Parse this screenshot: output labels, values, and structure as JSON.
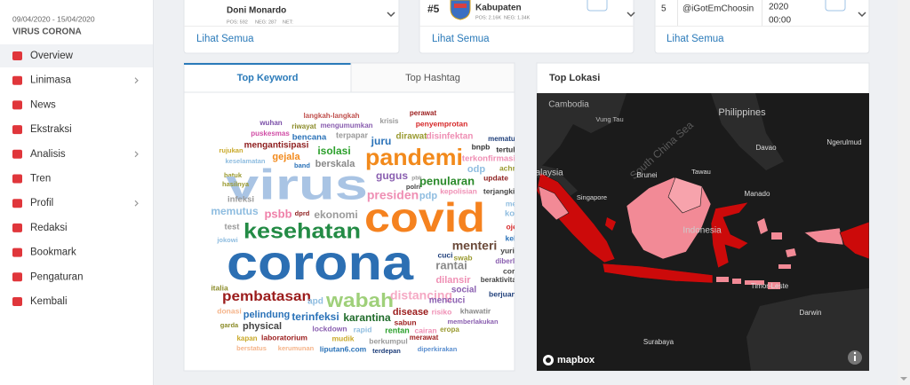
{
  "sidebar": {
    "date_range": "09/04/2020 - 15/04/2020",
    "project": "VIRUS CORONA",
    "active_item": 0,
    "menu": [
      {
        "label": "Overview",
        "has_submenu": false
      },
      {
        "label": "Linimasa",
        "has_submenu": true
      },
      {
        "label": "News",
        "has_submenu": false
      },
      {
        "label": "Ekstraksi",
        "has_submenu": false
      },
      {
        "label": "Analisis",
        "has_submenu": true
      },
      {
        "label": "Tren",
        "has_submenu": false
      },
      {
        "label": "Profil",
        "has_submenu": true
      },
      {
        "label": "Redaksi",
        "has_submenu": false
      },
      {
        "label": "Bookmark",
        "has_submenu": false
      },
      {
        "label": "Pengaturan",
        "has_submenu": false
      },
      {
        "label": "Kembali",
        "has_submenu": false
      }
    ]
  },
  "cards": [
    {
      "name": "Doni Monardo",
      "pos": "POS: 592",
      "neg": "NEG: 287",
      "net": "NET:",
      "link": "Lihat Semua"
    },
    {
      "rank": "#5",
      "name": "Kabupaten",
      "pos": "POS: 2.16K",
      "neg": "NEG: 1.34K",
      "link": "Lihat Semua"
    },
    {
      "rank": "5",
      "name": "@iGotEmChoosin",
      "date": "2020",
      "time": "00:00",
      "link": "Lihat Semua"
    }
  ],
  "keywords_panel": {
    "tabs": [
      "Top Keyword",
      "Top Hashtag"
    ],
    "active_tab": 0,
    "words": [
      {
        "text": "wuhan",
        "color": "#7b4fa8"
      },
      {
        "text": "langkah-langkah",
        "color": "#c0504d"
      },
      {
        "text": "krisis",
        "color": "#999999"
      },
      {
        "text": "perawat",
        "color": "#9b1c1c"
      },
      {
        "text": "riwayat",
        "color": "#8c8c2a"
      },
      {
        "text": "mengumumkan",
        "color": "#8a5fb0"
      },
      {
        "text": "penyemprotan",
        "color": "#d62728"
      },
      {
        "text": "puskesmas",
        "color": "#d14fa6"
      },
      {
        "text": "bencana",
        "color": "#2a72b8"
      },
      {
        "text": "terpapar",
        "color": "#9a9a9a"
      },
      {
        "text": "dirawat",
        "color": "#9a9a30"
      },
      {
        "text": "disinfektan",
        "color": "#ef8fb4"
      },
      {
        "text": "mematuhi",
        "color": "#1f3f7a"
      },
      {
        "text": "rujukan",
        "color": "#c9a92a"
      },
      {
        "text": "mengantisipasi",
        "color": "#8e1f1f"
      },
      {
        "text": "juru",
        "color": "#2a72b8"
      },
      {
        "text": "bnpb",
        "color": "#333333"
      },
      {
        "text": "tertular",
        "color": "#333333"
      },
      {
        "text": "gejala",
        "color": "#f28a1c"
      },
      {
        "text": "isolasi",
        "color": "#2ca02c"
      },
      {
        "text": "pandemi",
        "color": "#f28a1c"
      },
      {
        "text": "terkonfirmasi",
        "color": "#ef8fb4"
      },
      {
        "text": "keselamatan",
        "color": "#8fbde0"
      },
      {
        "text": "band",
        "color": "#2a72b8"
      },
      {
        "text": "berskala",
        "color": "#888888"
      },
      {
        "text": "odp",
        "color": "#8fbde0"
      },
      {
        "text": "achmad",
        "color": "#9a9a30"
      },
      {
        "text": "batuk",
        "color": "#9a9a30"
      },
      {
        "text": "virus",
        "color": "#a9c4e4"
      },
      {
        "text": "gugus",
        "color": "#8a5fb0"
      },
      {
        "text": "update",
        "color": "#8e1f1f"
      },
      {
        "text": "hasilnya",
        "color": "#9a9a30"
      },
      {
        "text": "penularan",
        "color": "#2a8a2a"
      },
      {
        "text": "pbk",
        "color": "#999999"
      },
      {
        "text": "polri",
        "color": "#444444"
      },
      {
        "text": "kepolisian",
        "color": "#ef8fb4"
      },
      {
        "text": "terjangkit",
        "color": "#444444"
      },
      {
        "text": "presiden",
        "color": "#ef8fb4"
      },
      {
        "text": "pdp",
        "color": "#8fbde0"
      },
      {
        "text": "infeksi",
        "color": "#999999"
      },
      {
        "text": "meringan",
        "color": "#8fbde0"
      },
      {
        "text": "memutus",
        "color": "#8fbde0"
      },
      {
        "text": "psbb",
        "color": "#ef7fa8"
      },
      {
        "text": "dprd",
        "color": "#8e1f1f"
      },
      {
        "text": "ekonomi",
        "color": "#9a9a9a"
      },
      {
        "text": "covid",
        "color": "#f5821f"
      },
      {
        "text": "konferen",
        "color": "#8fbde0"
      },
      {
        "text": "test",
        "color": "#999999"
      },
      {
        "text": "kesehatan",
        "color": "#238b45"
      },
      {
        "text": "ojek",
        "color": "#d62728"
      },
      {
        "text": "jokowi",
        "color": "#8fbde0"
      },
      {
        "text": "keluarga",
        "color": "#2a72b8"
      },
      {
        "text": "menteri",
        "color": "#6b4a3a"
      },
      {
        "text": "yurianto",
        "color": "#444444"
      },
      {
        "text": "corona",
        "color": "#2c6fb3"
      },
      {
        "text": "cuci",
        "color": "#1f3f7a"
      },
      {
        "text": "swab",
        "color": "#9a9a30"
      },
      {
        "text": "diberlakukan",
        "color": "#8a5fb0"
      },
      {
        "text": "rantai",
        "color": "#888888"
      },
      {
        "text": "coronaviru",
        "color": "#444444"
      },
      {
        "text": "dilansir",
        "color": "#ef8fb4"
      },
      {
        "text": "beraktivitas",
        "color": "#444444"
      },
      {
        "text": "italia",
        "color": "#8c8c2a"
      },
      {
        "text": "pembatasan",
        "color": "#9b1c1c"
      },
      {
        "text": "apd",
        "color": "#8fbde0"
      },
      {
        "text": "wabah",
        "color": "#9fd07a"
      },
      {
        "text": "distancing",
        "color": "#f5a9c4"
      },
      {
        "text": "social",
        "color": "#8a5fb0"
      },
      {
        "text": "berjuang",
        "color": "#1f3f7a"
      },
      {
        "text": "mencuci",
        "color": "#8a5fb0"
      },
      {
        "text": "donasi",
        "color": "#f5b48a"
      },
      {
        "text": "khawatir",
        "color": "#888888"
      },
      {
        "text": "pelindung",
        "color": "#2a72b8"
      },
      {
        "text": "terinfeksi",
        "color": "#2a72b8"
      },
      {
        "text": "karantina",
        "color": "#1f6b2a"
      },
      {
        "text": "disease",
        "color": "#9b1c1c"
      },
      {
        "text": "risiko",
        "color": "#ef8fb4"
      },
      {
        "text": "memberlakukan",
        "color": "#8a5fb0"
      },
      {
        "text": "garda",
        "color": "#8c8c2a"
      },
      {
        "text": "physical",
        "color": "#444444"
      },
      {
        "text": "lockdown",
        "color": "#8a5fb0"
      },
      {
        "text": "rapid",
        "color": "#8fbde0"
      },
      {
        "text": "sabun",
        "color": "#9b1c1c"
      },
      {
        "text": "rentan",
        "color": "#2ca02c"
      },
      {
        "text": "cairan",
        "color": "#ef8fb4"
      },
      {
        "text": "eropa",
        "color": "#9a9a30"
      },
      {
        "text": "kapan",
        "color": "#c9a92a"
      },
      {
        "text": "laboratorium",
        "color": "#9b1c1c"
      },
      {
        "text": "mudik",
        "color": "#c9a92a"
      },
      {
        "text": "berkumpul",
        "color": "#999999"
      },
      {
        "text": "merawat",
        "color": "#9b1c1c"
      },
      {
        "text": "berstatus",
        "color": "#f5b48a"
      },
      {
        "text": "kerumunan",
        "color": "#f5b48a"
      },
      {
        "text": "liputan6.com",
        "color": "#2a72b8"
      },
      {
        "text": "terdepan",
        "color": "#1f3f7a"
      },
      {
        "text": "diperkirakan",
        "color": "#5b8fd0"
      }
    ]
  },
  "map_panel": {
    "title": "Top Lokasi",
    "attribution": "mapbox",
    "labels": [
      "Cambodia",
      "Vung Tau",
      "Philippines",
      "South China Sea",
      "Davao",
      "Ngerulmud",
      "Malaysia",
      "Brunei",
      "Tawau",
      "Singapore",
      "Manado",
      "Indonesia",
      "Surabaya",
      "Timor-Leste",
      "Darwin"
    ]
  }
}
